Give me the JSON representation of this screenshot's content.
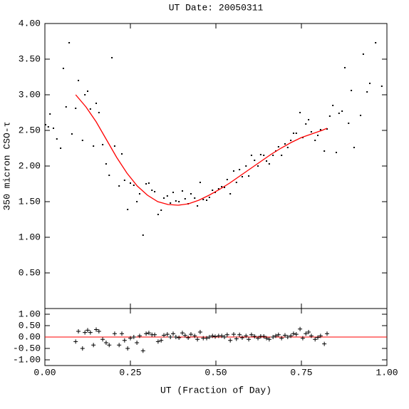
{
  "chart_data": [
    {
      "type": "scatter",
      "title": "UT Date: 20050311",
      "ylabel": "350 micron CSO-τ",
      "xlim": [
        0,
        1
      ],
      "ylim": [
        0,
        4.0
      ],
      "yticks": [
        {
          "value": 0.5,
          "label": "0.50"
        },
        {
          "value": 1.0,
          "label": "1.00"
        },
        {
          "value": 1.5,
          "label": "1.50"
        },
        {
          "value": 2.0,
          "label": "2.00"
        },
        {
          "value": 2.5,
          "label": "2.50"
        },
        {
          "value": 3.0,
          "label": "3.00"
        },
        {
          "value": 3.5,
          "label": "3.50"
        },
        {
          "value": 4.0,
          "label": "4.00"
        }
      ],
      "series": [
        {
          "type": "scatter",
          "color": "#000000",
          "x": [
            0.002,
            0.01,
            0.015,
            0.025,
            0.035,
            0.046,
            0.054,
            0.062,
            0.071,
            0.079,
            0.09,
            0.098,
            0.11,
            0.117,
            0.125,
            0.133,
            0.142,
            0.15,
            0.158,
            0.169,
            0.179,
            0.188,
            0.196,
            0.204,
            0.217,
            0.225,
            0.233,
            0.242,
            0.25,
            0.26,
            0.269,
            0.277,
            0.287,
            0.296,
            0.304,
            0.313,
            0.321,
            0.331,
            0.34,
            0.348,
            0.358,
            0.367,
            0.375,
            0.383,
            0.392,
            0.402,
            0.41,
            0.419,
            0.427,
            0.438,
            0.446,
            0.454,
            0.463,
            0.473,
            0.481,
            0.49,
            0.498,
            0.508,
            0.517,
            0.525,
            0.533,
            0.542,
            0.552,
            0.56,
            0.569,
            0.577,
            0.588,
            0.596,
            0.604,
            0.613,
            0.623,
            0.631,
            0.64,
            0.648,
            0.656,
            0.667,
            0.675,
            0.683,
            0.692,
            0.702,
            0.71,
            0.719,
            0.727,
            0.735,
            0.746,
            0.754,
            0.763,
            0.771,
            0.779,
            0.79,
            0.798,
            0.806,
            0.817,
            0.825,
            0.833,
            0.842,
            0.852,
            0.86,
            0.869,
            0.877,
            0.888,
            0.896,
            0.904,
            0.923,
            0.931,
            0.942,
            0.95,
            0.967,
            0.985
          ],
          "values": [
            2.58,
            2.55,
            2.73,
            2.53,
            2.38,
            2.25,
            3.37,
            2.83,
            3.73,
            2.45,
            2.81,
            3.2,
            2.36,
            3.0,
            3.05,
            2.8,
            2.28,
            2.88,
            2.75,
            2.3,
            2.03,
            1.87,
            3.52,
            2.28,
            1.72,
            2.17,
            1.8,
            1.39,
            1.76,
            1.73,
            1.5,
            1.61,
            1.03,
            1.75,
            1.76,
            1.66,
            1.64,
            1.32,
            1.38,
            1.55,
            1.58,
            1.48,
            1.63,
            1.51,
            1.5,
            1.65,
            1.54,
            1.47,
            1.61,
            1.55,
            1.44,
            1.77,
            1.53,
            1.52,
            1.56,
            1.66,
            1.63,
            1.68,
            1.71,
            1.7,
            1.81,
            1.61,
            1.93,
            1.77,
            1.95,
            1.85,
            2.0,
            1.86,
            2.15,
            2.08,
            2.0,
            2.16,
            2.15,
            2.07,
            2.03,
            2.15,
            2.21,
            2.27,
            2.15,
            2.31,
            2.26,
            2.36,
            2.46,
            2.46,
            2.75,
            2.4,
            2.59,
            2.65,
            2.48,
            2.36,
            2.43,
            2.51,
            2.21,
            2.52,
            2.7,
            2.85,
            2.19,
            2.74,
            2.77,
            3.38,
            2.6,
            3.06,
            2.26,
            2.71,
            3.57,
            3.04,
            3.16,
            3.73,
            3.12
          ]
        },
        {
          "type": "line",
          "color": "#ff0000",
          "x": [
            0.09,
            0.12,
            0.15,
            0.18,
            0.21,
            0.24,
            0.27,
            0.3,
            0.33,
            0.36,
            0.39,
            0.42,
            0.45,
            0.48,
            0.51,
            0.54,
            0.57,
            0.6,
            0.63,
            0.66,
            0.69,
            0.72,
            0.75,
            0.78,
            0.81,
            0.825
          ],
          "values": [
            3.0,
            2.83,
            2.62,
            2.37,
            2.12,
            1.9,
            1.72,
            1.59,
            1.5,
            1.46,
            1.45,
            1.47,
            1.52,
            1.59,
            1.67,
            1.76,
            1.86,
            1.96,
            2.06,
            2.16,
            2.25,
            2.33,
            2.4,
            2.45,
            2.5,
            2.53
          ]
        }
      ]
    },
    {
      "type": "scatter",
      "xlabel": "UT (Fraction of Day)",
      "xlim": [
        0,
        1
      ],
      "ylim": [
        -1.25,
        1.25
      ],
      "xticks": [
        {
          "value": 0,
          "label": "0.00"
        },
        {
          "value": 0.25,
          "label": "0.25"
        },
        {
          "value": 0.5,
          "label": "0.50"
        },
        {
          "value": 0.75,
          "label": "0.75"
        },
        {
          "value": 1.0,
          "label": "1.00"
        }
      ],
      "yticks": [
        {
          "value": -1.0,
          "label": "-1.00"
        },
        {
          "value": -0.5,
          "label": "-0.50"
        },
        {
          "value": 0,
          "label": "0.00"
        },
        {
          "value": 0.5,
          "label": "0.50"
        },
        {
          "value": 1.0,
          "label": "1.00"
        }
      ],
      "reference_line": {
        "y": 0,
        "color": "#ff0000"
      },
      "series": [
        {
          "type": "plus",
          "color": "#000000",
          "x": [
            0.09,
            0.098,
            0.11,
            0.117,
            0.125,
            0.133,
            0.142,
            0.15,
            0.158,
            0.169,
            0.179,
            0.188,
            0.204,
            0.217,
            0.225,
            0.233,
            0.242,
            0.25,
            0.26,
            0.269,
            0.277,
            0.287,
            0.296,
            0.304,
            0.313,
            0.321,
            0.331,
            0.34,
            0.348,
            0.358,
            0.367,
            0.375,
            0.383,
            0.392,
            0.402,
            0.41,
            0.419,
            0.427,
            0.438,
            0.446,
            0.454,
            0.463,
            0.473,
            0.481,
            0.49,
            0.498,
            0.508,
            0.517,
            0.525,
            0.533,
            0.542,
            0.552,
            0.56,
            0.569,
            0.577,
            0.588,
            0.596,
            0.604,
            0.613,
            0.623,
            0.631,
            0.64,
            0.648,
            0.656,
            0.667,
            0.675,
            0.683,
            0.692,
            0.702,
            0.71,
            0.719,
            0.727,
            0.735,
            0.746,
            0.754,
            0.763,
            0.771,
            0.779,
            0.79,
            0.798,
            0.806,
            0.817,
            0.825
          ],
          "values": [
            -0.2,
            0.25,
            -0.5,
            0.2,
            0.3,
            0.2,
            -0.35,
            0.33,
            0.25,
            -0.1,
            -0.25,
            -0.35,
            0.15,
            -0.35,
            0.15,
            -0.15,
            -0.5,
            -0.05,
            0,
            -0.25,
            0.05,
            -0.6,
            0.15,
            0.18,
            0.1,
            0.1,
            -0.2,
            -0.15,
            0.08,
            0.12,
            0,
            0.15,
            0,
            -0.03,
            0.18,
            0.07,
            -0.03,
            0.12,
            0.05,
            -0.1,
            0.22,
            -0.05,
            -0.05,
            0,
            0.05,
            0.02,
            0.05,
            0.05,
            0,
            0.1,
            -0.15,
            0.12,
            -0.08,
            0.1,
            -0.03,
            0.05,
            -0.1,
            0.1,
            0.03,
            -0.05,
            0.03,
            0.03,
            -0.05,
            -0.1,
            0,
            0.05,
            0.1,
            -0.05,
            0.08,
            0,
            0.05,
            0.15,
            0.12,
            0.35,
            -0.05,
            0.15,
            0.22,
            0.05,
            -0.1,
            -0.02,
            0.05,
            -0.3,
            0.15
          ]
        }
      ]
    }
  ]
}
